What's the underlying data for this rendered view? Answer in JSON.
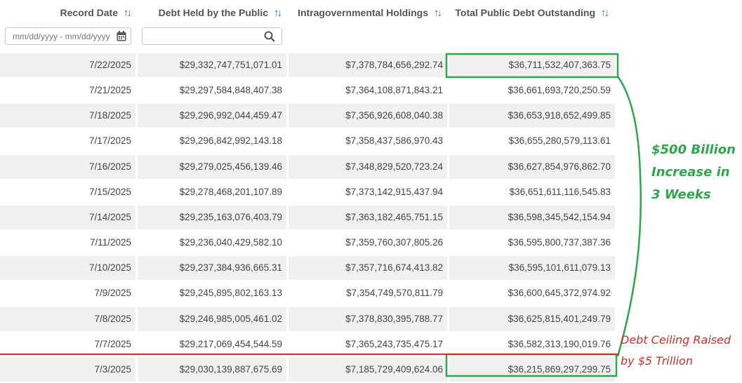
{
  "headers": {
    "record_date": "Record Date",
    "debt_public": "Debt Held by the Public",
    "intragov": "Intragovernmental Holdings",
    "total": "Total Public Debt Outstanding"
  },
  "sort_icon": "sort-arrows-icon",
  "filters": {
    "date_placeholder": "mm/dd/yyyy - mm/dd/yyyy",
    "search_value": ""
  },
  "rows": [
    {
      "date": "7/22/2025",
      "public": "$29,332,747,751,071.01",
      "intra": "$7,378,784,656,292.74",
      "total": "$36,711,532,407,363.75"
    },
    {
      "date": "7/21/2025",
      "public": "$29,297,584,848,407.38",
      "intra": "$7,364,108,871,843.21",
      "total": "$36,661,693,720,250.59"
    },
    {
      "date": "7/18/2025",
      "public": "$29,296,992,044,459.47",
      "intra": "$7,356,926,608,040.38",
      "total": "$36,653,918,652,499.85"
    },
    {
      "date": "7/17/2025",
      "public": "$29,296,842,992,143.18",
      "intra": "$7,358,437,586,970.43",
      "total": "$36,655,280,579,113.61"
    },
    {
      "date": "7/16/2025",
      "public": "$29,279,025,456,139.46",
      "intra": "$7,348,829,520,723.24",
      "total": "$36,627,854,976,862.70"
    },
    {
      "date": "7/15/2025",
      "public": "$29,278,468,201,107.89",
      "intra": "$7,373,142,915,437.94",
      "total": "$36,651,611,116,545.83"
    },
    {
      "date": "7/14/2025",
      "public": "$29,235,163,076,403.79",
      "intra": "$7,363,182,465,751.15",
      "total": "$36,598,345,542,154.94"
    },
    {
      "date": "7/11/2025",
      "public": "$29,236,040,429,582.10",
      "intra": "$7,359,760,307,805.26",
      "total": "$36,595,800,737,387.36"
    },
    {
      "date": "7/10/2025",
      "public": "$29,237,384,936,665.31",
      "intra": "$7,357,716,674,413.82",
      "total": "$36,595,101,611,079.13"
    },
    {
      "date": "7/9/2025",
      "public": "$29,245,895,802,163.13",
      "intra": "$7,354,749,570,811.79",
      "total": "$36,600,645,372,974.92"
    },
    {
      "date": "7/8/2025",
      "public": "$29,246,985,005,461.02",
      "intra": "$7,378,830,395,788.77",
      "total": "$36,625,815,401,249.79"
    },
    {
      "date": "7/7/2025",
      "public": "$29,217,069,454,544.59",
      "intra": "$7,365,243,735,475.17",
      "total": "$36,582,313,190,019.76"
    },
    {
      "date": "7/3/2025",
      "public": "$29,030,139,887,675.69",
      "intra": "$7,185,729,409,624.06",
      "total": "$36,215,869,297,299.75"
    }
  ],
  "annotations": {
    "increase": "$500 Billion\nIncrease in\n3 Weeks",
    "ceiling": "Debt Ceiling Raised\nby $5 Trillion"
  },
  "colors": {
    "accent_sort": "#1f6fb5",
    "annotation_green": "#2aa84a",
    "annotation_red": "#d62b2b",
    "row_alt": "#f0f0f0"
  }
}
